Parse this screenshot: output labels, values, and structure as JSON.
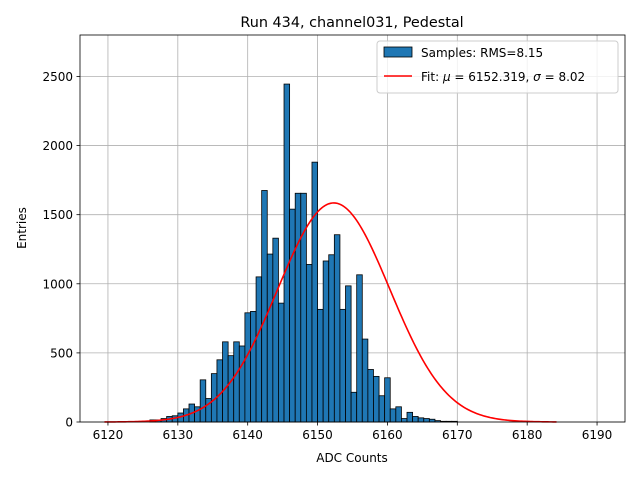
{
  "chart_data": {
    "type": "bar",
    "title": "Run 434, channel031, Pedestal",
    "xlabel": "ADC Counts",
    "ylabel": "Entries",
    "xlim": [
      6116,
      6194
    ],
    "ylim": [
      0,
      2800
    ],
    "x_ticks": [
      "6120",
      "6130",
      "6140",
      "6150",
      "6160",
      "6170",
      "6180",
      "6190"
    ],
    "y_ticks": [
      "0",
      "500",
      "1000",
      "1500",
      "2000",
      "2500"
    ],
    "grid": true,
    "legend_position": "top-right",
    "bin_edges_start": 6126,
    "bin_width": 0.8,
    "histogram": {
      "name": "Samples: RMS=8.15",
      "color": "#1f77b4",
      "values": [
        15,
        15,
        25,
        40,
        45,
        65,
        95,
        130,
        110,
        305,
        170,
        350,
        450,
        580,
        480,
        580,
        550,
        790,
        800,
        1050,
        1675,
        1215,
        1330,
        860,
        2445,
        1540,
        1655,
        1655,
        1140,
        1880,
        815,
        1165,
        1210,
        1355,
        815,
        985,
        215,
        1065,
        600,
        380,
        330,
        190,
        320,
        95,
        110,
        25,
        70,
        40,
        30,
        25,
        20,
        10,
        5,
        5,
        5
      ]
    },
    "fit": {
      "name_prefix": "Fit: ",
      "mu_symbol": "μ",
      "mu_text": " = 6152.319, ",
      "sigma_symbol": "σ",
      "sigma_text": " = 8.02",
      "mu": 6152.319,
      "sigma": 8.02,
      "amplitude": 1585,
      "x_range": [
        6119.5,
        6184.2
      ],
      "color": "#ff0000"
    }
  }
}
